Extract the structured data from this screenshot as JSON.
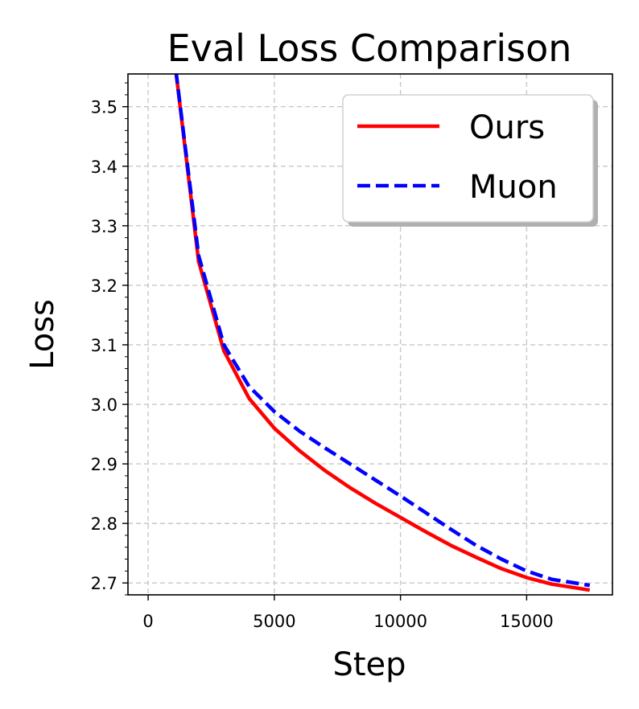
{
  "chart_data": {
    "type": "line",
    "title": "Eval Loss Comparison",
    "xlabel": "Step",
    "ylabel": "Loss",
    "xlim": [
      -800,
      18400
    ],
    "ylim": [
      2.68,
      3.555
    ],
    "xticks": [
      0,
      5000,
      10000,
      15000
    ],
    "xtick_labels": [
      "0",
      "5000",
      "10000",
      "15000"
    ],
    "yticks": [
      2.7,
      2.8,
      2.9,
      3.0,
      3.1,
      3.2,
      3.3,
      3.4,
      3.5
    ],
    "ytick_labels": [
      "2.7",
      "2.8",
      "2.9",
      "3.0",
      "3.1",
      "3.2",
      "3.3",
      "3.4",
      "3.5"
    ],
    "grid": true,
    "legend_position": "top-right",
    "series": [
      {
        "name": "Ours",
        "color": "#ff0000",
        "style": "solid",
        "x": [
          1100,
          2000,
          3000,
          4000,
          5000,
          6000,
          7000,
          8000,
          9000,
          10000,
          11000,
          12000,
          13000,
          14000,
          15000,
          16000,
          17500
        ],
        "y": [
          3.56,
          3.24,
          3.09,
          3.01,
          2.96,
          2.922,
          2.889,
          2.86,
          2.834,
          2.81,
          2.786,
          2.763,
          2.743,
          2.724,
          2.709,
          2.698,
          2.688
        ]
      },
      {
        "name": "Muon",
        "color": "#0000ff",
        "style": "dashed",
        "x": [
          1100,
          2000,
          3000,
          4000,
          5000,
          6000,
          7000,
          8000,
          9000,
          10000,
          11000,
          12000,
          13000,
          14000,
          15000,
          16000,
          17500
        ],
        "y": [
          3.56,
          3.25,
          3.1,
          3.03,
          2.988,
          2.955,
          2.927,
          2.9,
          2.873,
          2.846,
          2.818,
          2.79,
          2.763,
          2.74,
          2.72,
          2.706,
          2.696
        ]
      }
    ]
  }
}
